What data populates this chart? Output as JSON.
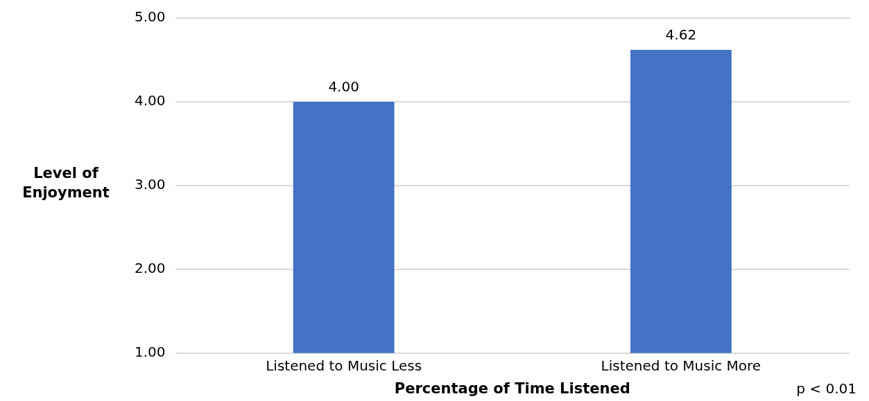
{
  "chart_data": {
    "type": "bar",
    "xlabel": "Percentage of Time Listened",
    "ylabel": "Level of Enjoyment",
    "categories": [
      "Listened to Music Less",
      "Listened to Music More"
    ],
    "values": [
      4.0,
      4.62
    ],
    "color": "#4472c4",
    "ylim": [
      1,
      5
    ],
    "yticks": [
      {
        "value": 1,
        "label": "1.00"
      },
      {
        "value": 2,
        "label": "2.00"
      },
      {
        "value": 3,
        "label": "3.00"
      },
      {
        "value": 4,
        "label": "4.00"
      },
      {
        "value": 5,
        "label": "5.00"
      }
    ],
    "value_labels": [
      "4.00",
      "4.62"
    ],
    "grid": "y",
    "legend": false,
    "annotations": [
      "p < 0.01"
    ]
  }
}
